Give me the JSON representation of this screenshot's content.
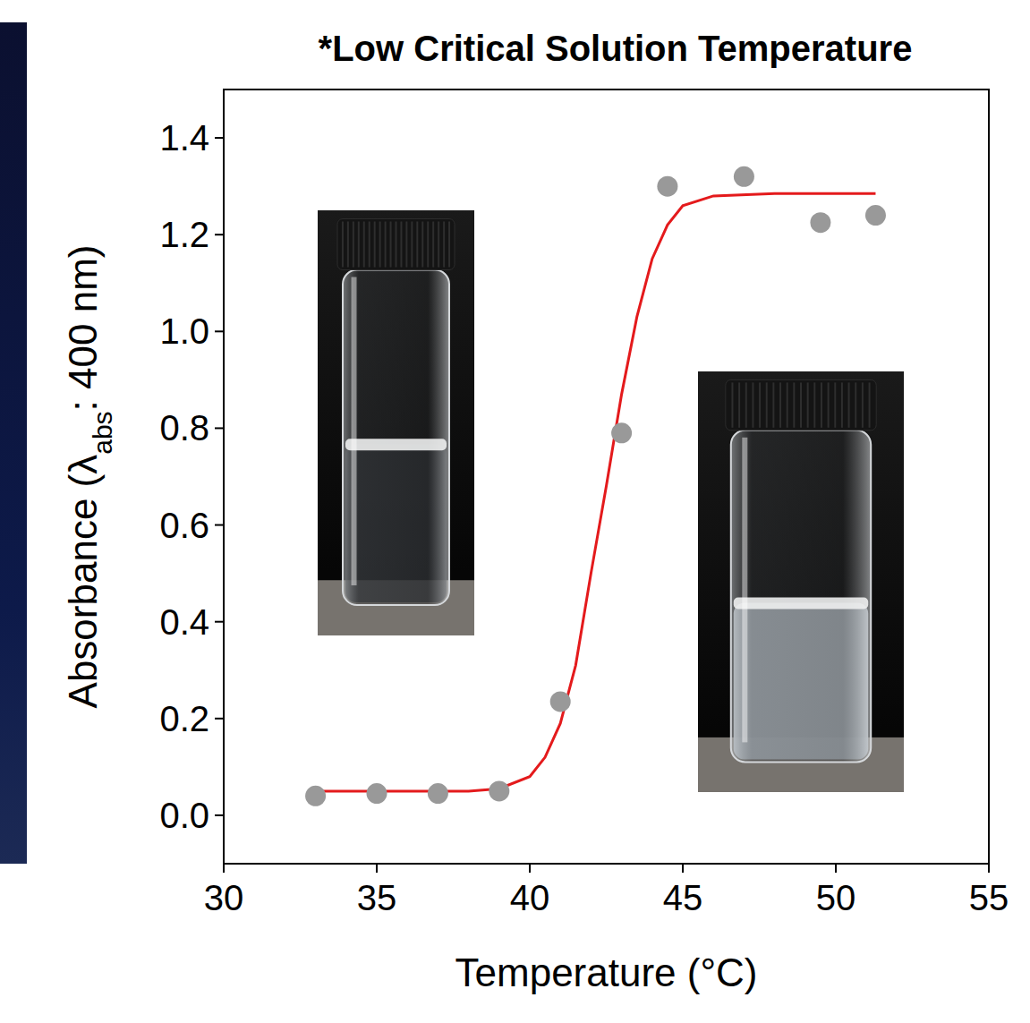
{
  "chart_data": {
    "type": "scatter",
    "title": "*Low Critical Solution Temperature",
    "xlabel": "Temperature (°C)",
    "ylabel": [
      "Absorbance (λ",
      "abs",
      ": 400 nm)"
    ],
    "xlim": [
      30,
      55
    ],
    "xticks": [
      30,
      35,
      40,
      45,
      50,
      55
    ],
    "ylim": [
      -0.1,
      1.5
    ],
    "yticks": [
      {
        "value": 0,
        "label": "0.0"
      },
      0.2,
      0.4,
      0.6,
      0.8,
      {
        "value": 1,
        "label": "1.0"
      },
      1.2,
      1.4
    ],
    "grid": false,
    "series": [
      {
        "type": "scatter",
        "marker": "circle",
        "color": "#999999",
        "x": [
          33,
          35,
          37,
          39,
          41,
          43,
          44.5,
          47,
          49.5,
          51.3
        ],
        "values": [
          0.04,
          0.045,
          0.045,
          0.05,
          0.235,
          0.79,
          1.3,
          1.32,
          1.225,
          1.24
        ]
      },
      {
        "type": "line",
        "line_style": "solid",
        "color": "#e41a1c",
        "x": [
          33,
          38,
          39,
          40,
          40.5,
          41,
          41.5,
          42,
          42.5,
          43,
          43.5,
          44,
          44.5,
          45,
          46,
          48,
          51.3
        ],
        "values": [
          0.05,
          0.05,
          0.055,
          0.08,
          0.12,
          0.19,
          0.31,
          0.5,
          0.68,
          0.87,
          1.03,
          1.15,
          1.22,
          1.26,
          1.28,
          1.285,
          1.285
        ]
      }
    ]
  }
}
